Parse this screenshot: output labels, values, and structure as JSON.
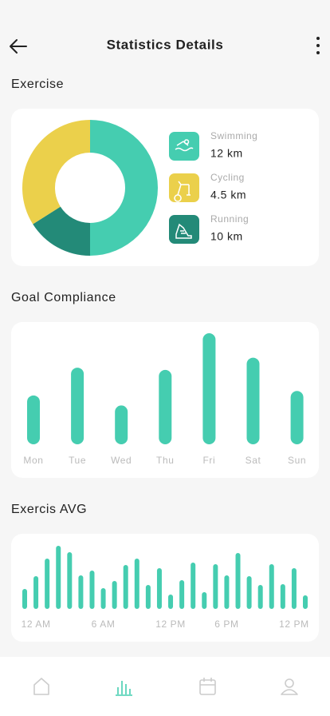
{
  "header": {
    "title": "Statistics Details"
  },
  "exercise": {
    "title": "Exercise",
    "chart_data": {
      "type": "donut",
      "values": [
        50,
        16,
        34
      ],
      "colors": [
        "#45cdb0",
        "#238a78",
        "#ebd04b"
      ]
    },
    "legend": [
      {
        "name": "Swimming",
        "value": "12 km",
        "color": "#45cdb0"
      },
      {
        "name": "Cycling",
        "value": "4.5 km",
        "color": "#ebd04b"
      },
      {
        "name": "Running",
        "value": "10 km",
        "color": "#238a78"
      }
    ]
  },
  "goal": {
    "title": "Goal Compliance",
    "chart_data": {
      "type": "bar",
      "categories": [
        "Mon",
        "Tue",
        "Wed",
        "Thu",
        "Fri",
        "Sat",
        "Sun"
      ],
      "values": [
        44,
        69,
        35,
        67,
        100,
        78,
        48
      ],
      "color": "#45cdb0",
      "ylim": [
        0,
        100
      ]
    }
  },
  "avg": {
    "title": "Exercis AVG",
    "chart_data": {
      "type": "bar",
      "categories": [
        null,
        "12 AM",
        null,
        null,
        null,
        null,
        null,
        "6 AM",
        null,
        null,
        null,
        null,
        null,
        "12 PM",
        null,
        null,
        null,
        null,
        "6 PM",
        null,
        null,
        null,
        null,
        null,
        "12 PM",
        null
      ],
      "values": [
        25,
        41,
        63,
        79,
        71,
        42,
        48,
        26,
        35,
        55,
        63,
        30,
        51,
        18,
        36,
        58,
        21,
        56,
        42,
        70,
        41,
        30,
        56,
        31,
        51,
        17
      ],
      "color": "#45cdb0",
      "ylim": [
        0,
        80
      ]
    }
  }
}
